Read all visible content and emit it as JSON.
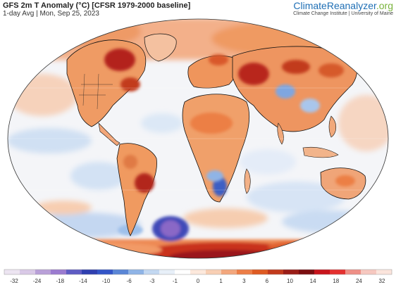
{
  "header": {
    "title": "GFS 2m T Anomaly (°C) [CFSR 1979-2000 baseline]",
    "subtitle": "1-day Avg | Mon, Sep 25, 2023",
    "brand_climate": "Climate",
    "brand_reanalyzer": "Reanalyzer",
    "brand_org": ".org",
    "brand_sub": "Climate Change Institute | University of Maine"
  },
  "colors": {
    "ocean_neutral": "#f3f5f8",
    "warm_light": "#f7c8a6",
    "warm": "#ef8a4a",
    "warm_strong": "#d2452a",
    "hot": "#a0141a",
    "cool_light": "#c6d9f1",
    "cool": "#6f9fdc",
    "cold": "#2a3fa8",
    "very_cold": "#6b4fb0",
    "land_outline": "#111111"
  },
  "legend": {
    "ticks": [
      "-32",
      "-24",
      "-18",
      "-14",
      "-10",
      "-6",
      "-3",
      "-1",
      "0",
      "1",
      "3",
      "6",
      "10",
      "14",
      "18",
      "24",
      "32"
    ],
    "swatches": [
      "#ece4f1",
      "#d9c9e6",
      "#b9a0d8",
      "#9b7bd0",
      "#5e5cc4",
      "#2f3fb0",
      "#3355c8",
      "#5a86d6",
      "#8fb4e6",
      "#c3d8f1",
      "#e7eff8",
      "#ffffff",
      "#fce8dc",
      "#f8cfb4",
      "#f3a77d",
      "#ec7d46",
      "#de5b22",
      "#c23a1c",
      "#9a1d17",
      "#7a0d10",
      "#c8141c",
      "#e4302f",
      "#ee8f86",
      "#f6c8c0",
      "#fbe4dc"
    ]
  }
}
